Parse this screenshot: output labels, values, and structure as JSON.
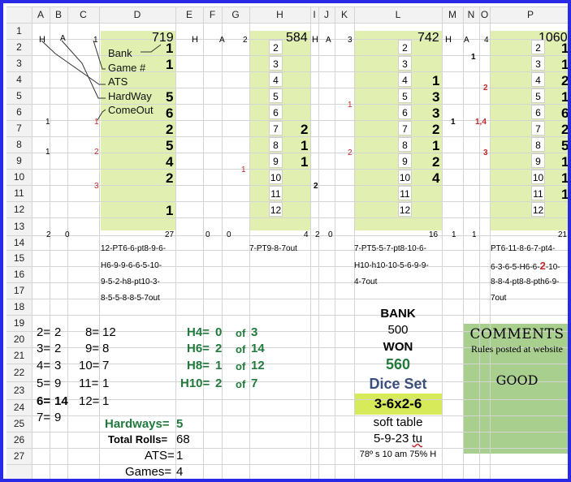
{
  "columns": [
    "A",
    "B",
    "C",
    "D",
    "E",
    "F",
    "G",
    "H",
    "I",
    "J",
    "K",
    "L",
    "M",
    "N",
    "O",
    "P"
  ],
  "rows": [
    "1",
    "2",
    "3",
    "4",
    "5",
    "6",
    "7",
    "8",
    "9",
    "10",
    "11",
    "12",
    "13",
    "14",
    "15",
    "16",
    "17",
    "18",
    "19",
    "20",
    "21",
    "22",
    "23",
    "24",
    "25",
    "26",
    "27"
  ],
  "row1": {
    "a": "H",
    "b": "A",
    "c": "1",
    "d": "719",
    "e": "H",
    "f": "A",
    "g": "2",
    "h": "584",
    "i": "H",
    "j": "A",
    "k": "3",
    "l": "742",
    "m": "H",
    "n": "A",
    "o": "4",
    "p": "1060"
  },
  "legend": {
    "bank": "Bank",
    "game": "Game #",
    "ats": "ATS",
    "hardway": "HardWay",
    "comeout": "ComeOut"
  },
  "number_sequence": [
    "2",
    "3",
    "4",
    "5",
    "6",
    "7",
    "8",
    "9",
    "10",
    "11",
    "12"
  ],
  "game1": {
    "d_values": [
      "1",
      "1",
      "",
      "5",
      "6",
      "2",
      "5",
      "4",
      "2",
      "",
      "1"
    ],
    "a_marks": [
      "1",
      "1"
    ],
    "c_marks": [
      "1",
      "2",
      "3"
    ],
    "row13": {
      "a": "2",
      "b": "0",
      "d": "27"
    },
    "rolls": [
      "12-PT6-6-pt8-9-6-",
      "H6-9-9-6-6-5-10-",
      "9-5-2-h8-pt10-3-",
      "8-5-5-8-8-5-7out"
    ]
  },
  "game2": {
    "h_values": [
      "2",
      "1",
      "1"
    ],
    "g_mark": "1",
    "i_mark": "2",
    "row13": {
      "e": "0",
      "f": "0",
      "h": "4"
    },
    "rolls": [
      "7-PT9-8-7out"
    ]
  },
  "game3": {
    "l_values": [
      "1",
      "3",
      "3",
      "2",
      "1",
      "2",
      "4"
    ],
    "k_marks": [
      "1",
      "2"
    ],
    "m_mark": "1",
    "row13": {
      "i": "2",
      "j": "0",
      "l": "16"
    },
    "rolls": [
      "7-PT5-5-7-pt8-10-6-",
      "H10-h10-10-5-6-9-9-",
      "4-7out"
    ]
  },
  "game4": {
    "p_values": [
      "1",
      "1",
      "2",
      "1",
      "6",
      "2",
      "5",
      "1",
      "1",
      "1"
    ],
    "n_mark": "1",
    "o_marks": [
      "2",
      "1,4",
      "3"
    ],
    "row13": {
      "m": "1",
      "n": "1",
      "p": "21"
    },
    "rolls_line1": "PT6-11-8-6-7-pt4-",
    "rolls_line2a": "6-3-6-5-H6-6-",
    "rolls_line2_red": "2",
    "rolls_line2b": "-10-",
    "rolls_line3": "8-8-4-pt8-8-pth6-9-",
    "rolls_line4": "7out"
  },
  "summary": {
    "counts": [
      {
        "l": "2=",
        "v": "2"
      },
      {
        "l": "3=",
        "v": "2"
      },
      {
        "l": "4=",
        "v": "3"
      },
      {
        "l": "5=",
        "v": "9"
      },
      {
        "l": "6=",
        "v": "14"
      },
      {
        "l": "7=",
        "v": "9"
      }
    ],
    "counts2": [
      {
        "l": "8=",
        "v": "12"
      },
      {
        "l": "9=",
        "v": "8"
      },
      {
        "l": "10=",
        "v": "7"
      },
      {
        "l": "11=",
        "v": "1"
      },
      {
        "l": "12=",
        "v": "1"
      }
    ],
    "hardways": [
      {
        "l": "H4=",
        "v": "0",
        "of": "of",
        "t": "3"
      },
      {
        "l": "H6=",
        "v": "2",
        "of": "of",
        "t": "14"
      },
      {
        "l": "H8=",
        "v": "1",
        "of": "of",
        "t": "12"
      },
      {
        "l": "H10=",
        "v": "2",
        "of": "of",
        "t": "7"
      }
    ],
    "hardways_total_label": "Hardways=",
    "hardways_total": "5",
    "total_rolls_label": "Total Rolls=",
    "total_rolls": "68",
    "ats_label": "ATS=",
    "ats": "1",
    "games_label": "Games=",
    "games": "4"
  },
  "bank_panel": {
    "bank_label": "BANK",
    "bank_value": "500",
    "won_label": "WON",
    "won_value": "560",
    "dice_set_label": "Dice Set",
    "dice_set": "3-6x2-6",
    "table": "soft table",
    "date_a": "5-9-23 ",
    "date_b": "tu",
    "weather": "78º s 10 am 75% H"
  },
  "comments": {
    "title": "COMMENTS",
    "subtitle": "Rules posted at website",
    "body": "GOOD"
  },
  "colors": {
    "highlight": "#e1efb0",
    "dice_set_bg": "#d6ea5a",
    "comments_bg": "#a9cf8e",
    "frame": "#2a2ae6",
    "red": "#c0282d",
    "green": "#217a3c",
    "blue": "#3a4f7e"
  }
}
